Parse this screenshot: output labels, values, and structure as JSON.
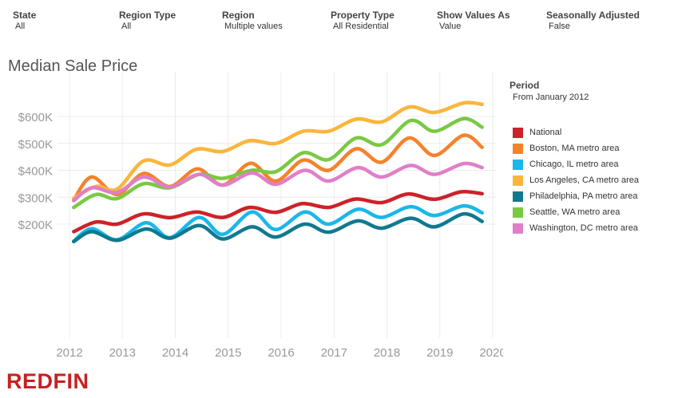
{
  "filters": [
    {
      "label": "State",
      "value": "All"
    },
    {
      "label": "Region Type",
      "value": "All"
    },
    {
      "label": "Region",
      "value": "Multiple values"
    },
    {
      "label": "Property Type",
      "value": "All Residential"
    },
    {
      "label": "Show Values As",
      "value": "Value"
    },
    {
      "label": "Seasonally Adjusted",
      "value": "False"
    }
  ],
  "legend": {
    "title": "Period",
    "subtitle": "From January 2012"
  },
  "brand": {
    "name": "REDFIN",
    "color": "#c82021"
  },
  "chart_data": {
    "type": "line",
    "title": "Median Sale Price",
    "xlabel": "",
    "ylabel": "",
    "xlim": [
      2012,
      2020
    ],
    "ylim": [
      100000,
      700000
    ],
    "xticks": [
      2012,
      2013,
      2014,
      2015,
      2016,
      2017,
      2018,
      2019,
      2020
    ],
    "xtick_labels": [
      "2012",
      "2013",
      "2014",
      "2015",
      "2016",
      "2017",
      "2018",
      "2019",
      "2020"
    ],
    "yticks": [
      200000,
      300000,
      400000,
      500000,
      600000
    ],
    "ytick_labels": [
      "$200K",
      "$300K",
      "$400K",
      "$500K",
      "$600K"
    ],
    "series": [
      {
        "name": "National",
        "color": "#cc2229",
        "points": [
          [
            2012.08,
            172000
          ],
          [
            2012.5,
            208000
          ],
          [
            2012.9,
            200000
          ],
          [
            2013.4,
            238000
          ],
          [
            2013.9,
            224000
          ],
          [
            2014.4,
            245000
          ],
          [
            2014.9,
            225000
          ],
          [
            2015.4,
            262000
          ],
          [
            2015.9,
            244000
          ],
          [
            2016.4,
            276000
          ],
          [
            2016.9,
            262000
          ],
          [
            2017.4,
            293000
          ],
          [
            2017.9,
            280000
          ],
          [
            2018.4,
            312000
          ],
          [
            2018.9,
            292000
          ],
          [
            2019.4,
            320000
          ],
          [
            2019.8,
            313000
          ]
        ]
      },
      {
        "name": "Boston, MA metro area",
        "color": "#f5822a",
        "points": [
          [
            2012.08,
            290000
          ],
          [
            2012.42,
            375000
          ],
          [
            2012.9,
            310000
          ],
          [
            2013.4,
            388000
          ],
          [
            2013.9,
            340000
          ],
          [
            2014.42,
            405000
          ],
          [
            2014.9,
            345000
          ],
          [
            2015.42,
            426000
          ],
          [
            2015.9,
            360000
          ],
          [
            2016.42,
            438000
          ],
          [
            2016.9,
            400000
          ],
          [
            2017.42,
            480000
          ],
          [
            2017.9,
            430000
          ],
          [
            2018.42,
            520000
          ],
          [
            2018.9,
            455000
          ],
          [
            2019.45,
            530000
          ],
          [
            2019.8,
            485000
          ]
        ]
      },
      {
        "name": "Chicago, IL metro area",
        "color": "#1ab7ea",
        "points": [
          [
            2012.08,
            137000
          ],
          [
            2012.42,
            183000
          ],
          [
            2012.9,
            142000
          ],
          [
            2013.45,
            205000
          ],
          [
            2013.9,
            150000
          ],
          [
            2014.45,
            225000
          ],
          [
            2014.9,
            162000
          ],
          [
            2015.45,
            245000
          ],
          [
            2015.9,
            180000
          ],
          [
            2016.45,
            245000
          ],
          [
            2016.9,
            200000
          ],
          [
            2017.45,
            255000
          ],
          [
            2017.9,
            225000
          ],
          [
            2018.45,
            265000
          ],
          [
            2018.9,
            232000
          ],
          [
            2019.45,
            268000
          ],
          [
            2019.8,
            242000
          ]
        ]
      },
      {
        "name": "Los Angeles, CA metro area",
        "color": "#fbb53c",
        "points": [
          [
            2012.08,
            296000
          ],
          [
            2012.5,
            340000
          ],
          [
            2012.9,
            330000
          ],
          [
            2013.4,
            435000
          ],
          [
            2013.9,
            420000
          ],
          [
            2014.4,
            478000
          ],
          [
            2014.9,
            470000
          ],
          [
            2015.4,
            510000
          ],
          [
            2015.9,
            500000
          ],
          [
            2016.42,
            545000
          ],
          [
            2016.9,
            545000
          ],
          [
            2017.42,
            590000
          ],
          [
            2017.9,
            580000
          ],
          [
            2018.42,
            635000
          ],
          [
            2018.9,
            615000
          ],
          [
            2019.45,
            650000
          ],
          [
            2019.8,
            645000
          ]
        ]
      },
      {
        "name": "Philadelphia, PA metro area",
        "color": "#10798f",
        "points": [
          [
            2012.08,
            135000
          ],
          [
            2012.42,
            172000
          ],
          [
            2012.9,
            140000
          ],
          [
            2013.45,
            182000
          ],
          [
            2013.9,
            148000
          ],
          [
            2014.45,
            195000
          ],
          [
            2014.9,
            145000
          ],
          [
            2015.45,
            190000
          ],
          [
            2015.9,
            152000
          ],
          [
            2016.45,
            200000
          ],
          [
            2016.9,
            170000
          ],
          [
            2017.45,
            212000
          ],
          [
            2017.9,
            185000
          ],
          [
            2018.45,
            222000
          ],
          [
            2018.9,
            190000
          ],
          [
            2019.45,
            238000
          ],
          [
            2019.8,
            210000
          ]
        ]
      },
      {
        "name": "Seattle, WA metro area",
        "color": "#7ac943",
        "points": [
          [
            2012.08,
            262000
          ],
          [
            2012.5,
            310000
          ],
          [
            2012.9,
            295000
          ],
          [
            2013.4,
            350000
          ],
          [
            2013.9,
            335000
          ],
          [
            2014.45,
            385000
          ],
          [
            2014.9,
            370000
          ],
          [
            2015.45,
            400000
          ],
          [
            2015.9,
            395000
          ],
          [
            2016.42,
            465000
          ],
          [
            2016.9,
            440000
          ],
          [
            2017.42,
            520000
          ],
          [
            2017.9,
            495000
          ],
          [
            2018.45,
            585000
          ],
          [
            2018.9,
            545000
          ],
          [
            2019.45,
            592000
          ],
          [
            2019.8,
            560000
          ]
        ]
      },
      {
        "name": "Washington, DC metro area",
        "color": "#e07fc8",
        "points": [
          [
            2012.08,
            287000
          ],
          [
            2012.42,
            335000
          ],
          [
            2012.9,
            318000
          ],
          [
            2013.4,
            375000
          ],
          [
            2013.9,
            338000
          ],
          [
            2014.45,
            385000
          ],
          [
            2014.9,
            345000
          ],
          [
            2015.45,
            390000
          ],
          [
            2015.9,
            348000
          ],
          [
            2016.45,
            400000
          ],
          [
            2016.9,
            360000
          ],
          [
            2017.45,
            410000
          ],
          [
            2017.9,
            375000
          ],
          [
            2018.45,
            418000
          ],
          [
            2018.9,
            385000
          ],
          [
            2019.45,
            425000
          ],
          [
            2019.8,
            410000
          ]
        ]
      }
    ]
  }
}
